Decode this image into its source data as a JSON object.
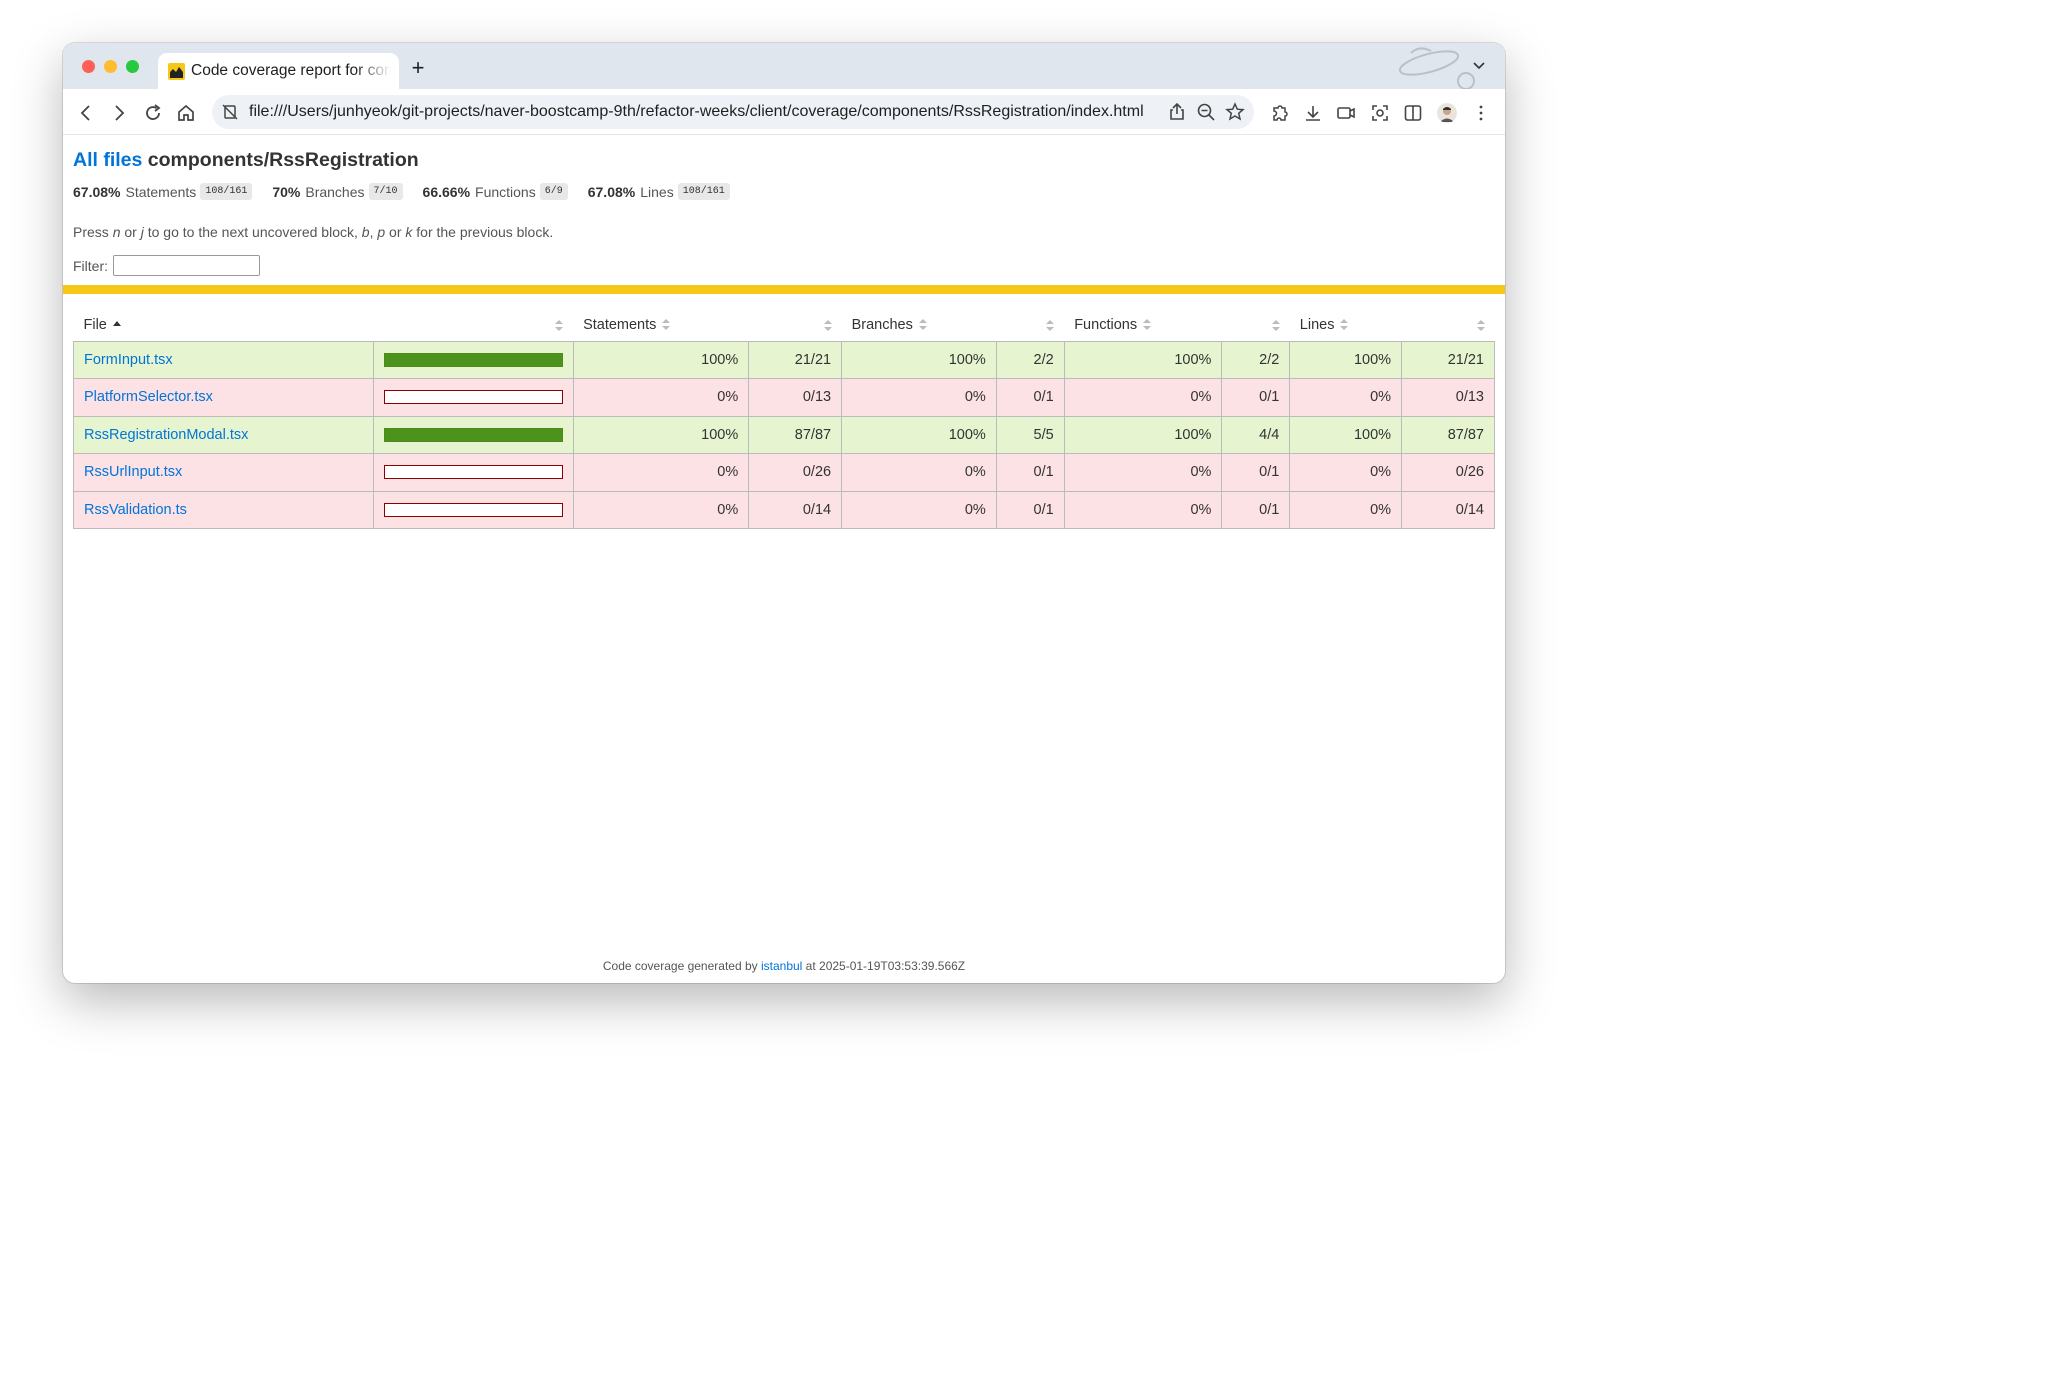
{
  "browser": {
    "tab_title": "Code coverage report for components/RssRegistration",
    "new_tab_symbol": "+",
    "url": "file:///Users/junhyeok/git-projects/naver-boostcamp-9th/refactor-weeks/client/coverage/components/RssRegistration/index.html"
  },
  "page": {
    "all_files_link": "All files",
    "path": "components/RssRegistration",
    "summary": [
      {
        "pct": "67.08%",
        "label": "Statements",
        "fraction": "108/161"
      },
      {
        "pct": "70%",
        "label": "Branches",
        "fraction": "7/10"
      },
      {
        "pct": "66.66%",
        "label": "Functions",
        "fraction": "6/9"
      },
      {
        "pct": "67.08%",
        "label": "Lines",
        "fraction": "108/161"
      }
    ],
    "hint": {
      "p1": "Press ",
      "n": "n",
      "p2": " or ",
      "j": "j",
      "p3": " to go to the next uncovered block, ",
      "b": "b",
      "p4": ", ",
      "p": "p",
      "p5": " or ",
      "k": "k",
      "p6": " for the previous block."
    },
    "filter_label": "Filter:",
    "filter_value": ""
  },
  "table": {
    "headers": {
      "file": "File",
      "statements": "Statements",
      "branches": "Branches",
      "functions": "Functions",
      "lines": "Lines"
    },
    "rows": [
      {
        "file": "FormInput.tsx",
        "coverage": 1.0,
        "status": "high",
        "statements_pct": "100%",
        "statements": "21/21",
        "branches_pct": "100%",
        "branches": "2/2",
        "functions_pct": "100%",
        "functions": "2/2",
        "lines_pct": "100%",
        "lines": "21/21"
      },
      {
        "file": "PlatformSelector.tsx",
        "coverage": 0.0,
        "status": "low",
        "statements_pct": "0%",
        "statements": "0/13",
        "branches_pct": "0%",
        "branches": "0/1",
        "functions_pct": "0%",
        "functions": "0/1",
        "lines_pct": "0%",
        "lines": "0/13"
      },
      {
        "file": "RssRegistrationModal.tsx",
        "coverage": 1.0,
        "status": "high",
        "statements_pct": "100%",
        "statements": "87/87",
        "branches_pct": "100%",
        "branches": "5/5",
        "functions_pct": "100%",
        "functions": "4/4",
        "lines_pct": "100%",
        "lines": "87/87"
      },
      {
        "file": "RssUrlInput.tsx",
        "coverage": 0.0,
        "status": "low",
        "statements_pct": "0%",
        "statements": "0/26",
        "branches_pct": "0%",
        "branches": "0/1",
        "functions_pct": "0%",
        "functions": "0/1",
        "lines_pct": "0%",
        "lines": "0/26"
      },
      {
        "file": "RssValidation.ts",
        "coverage": 0.0,
        "status": "low",
        "statements_pct": "0%",
        "statements": "0/14",
        "branches_pct": "0%",
        "branches": "0/1",
        "functions_pct": "0%",
        "functions": "0/1",
        "lines_pct": "0%",
        "lines": "0/14"
      }
    ]
  },
  "footer": {
    "prefix": "Code coverage generated by ",
    "link": "istanbul",
    "suffix": " at 2025-01-19T03:53:39.566Z"
  },
  "colors": {
    "link": "#0074d9",
    "high_row": "#e6f5d0",
    "low_row": "#fce1e5",
    "bar_fill": "#4d921c",
    "divider": "#f5c817"
  }
}
